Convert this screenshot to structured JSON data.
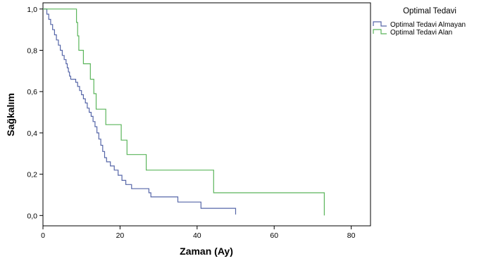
{
  "chart_data": {
    "type": "line",
    "step": true,
    "xlabel": "Zaman (Ay)",
    "ylabel": "Sağkalım",
    "xlim": [
      0,
      85
    ],
    "ylim": [
      -0.05,
      1.03
    ],
    "xticks": [
      0,
      20,
      40,
      60,
      80
    ],
    "yticks": [
      0.0,
      0.2,
      0.4,
      0.6,
      0.8,
      1.0
    ],
    "ytick_labels": [
      "0,0",
      "0,2",
      "0,4",
      "0,6",
      "0,8",
      "1,0"
    ],
    "grid": false,
    "legend": {
      "title": "Optimal Tedavi",
      "position": "top-right-outside"
    },
    "series": [
      {
        "name": "Optimal Tedavi Almayan",
        "color": "#5666a8",
        "points": [
          [
            0,
            1.0
          ],
          [
            1.0,
            0.975
          ],
          [
            1.5,
            0.95
          ],
          [
            2.0,
            0.925
          ],
          [
            2.5,
            0.9
          ],
          [
            3.0,
            0.875
          ],
          [
            3.5,
            0.85
          ],
          [
            4.0,
            0.825
          ],
          [
            4.5,
            0.8
          ],
          [
            5.0,
            0.775
          ],
          [
            5.5,
            0.755
          ],
          [
            6.0,
            0.735
          ],
          [
            6.3,
            0.715
          ],
          [
            6.6,
            0.695
          ],
          [
            6.9,
            0.675
          ],
          [
            7.2,
            0.66
          ],
          [
            8.5,
            0.645
          ],
          [
            9.0,
            0.625
          ],
          [
            9.5,
            0.605
          ],
          [
            10.0,
            0.585
          ],
          [
            10.5,
            0.565
          ],
          [
            11.0,
            0.545
          ],
          [
            11.5,
            0.52
          ],
          [
            12.0,
            0.5
          ],
          [
            12.5,
            0.48
          ],
          [
            13.0,
            0.455
          ],
          [
            13.5,
            0.43
          ],
          [
            14.0,
            0.4
          ],
          [
            14.5,
            0.37
          ],
          [
            15.0,
            0.34
          ],
          [
            15.5,
            0.31
          ],
          [
            16.0,
            0.28
          ],
          [
            16.5,
            0.26
          ],
          [
            17.5,
            0.24
          ],
          [
            18.5,
            0.22
          ],
          [
            19.5,
            0.195
          ],
          [
            20.5,
            0.17
          ],
          [
            21.5,
            0.15
          ],
          [
            23.0,
            0.13
          ],
          [
            27.5,
            0.11
          ],
          [
            28.0,
            0.09
          ],
          [
            35.0,
            0.065
          ],
          [
            41.0,
            0.035
          ],
          [
            50.0,
            0.005
          ]
        ]
      },
      {
        "name": "Optimal Tedavi Alan",
        "color": "#5bb55b",
        "points": [
          [
            0,
            1.0
          ],
          [
            8.7,
            0.935
          ],
          [
            9.0,
            0.87
          ],
          [
            9.3,
            0.8
          ],
          [
            10.5,
            0.735
          ],
          [
            12.3,
            0.66
          ],
          [
            13.2,
            0.59
          ],
          [
            13.8,
            0.515
          ],
          [
            16.3,
            0.44
          ],
          [
            20.3,
            0.365
          ],
          [
            21.8,
            0.295
          ],
          [
            26.8,
            0.22
          ],
          [
            44.3,
            0.11
          ],
          [
            73.0,
            0.0
          ]
        ]
      }
    ]
  }
}
